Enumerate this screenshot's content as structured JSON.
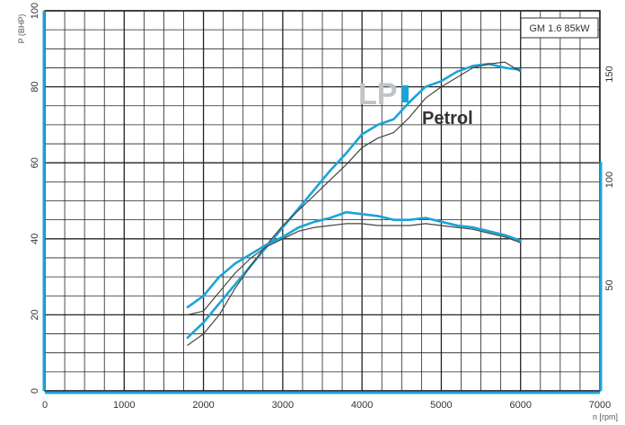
{
  "chart_data": {
    "type": "line",
    "title": "",
    "model_label": "GM 1.6 85kW",
    "xlabel": "n [rpm]",
    "ylabel": "P (BHP)",
    "xlim": [
      0,
      7000
    ],
    "ylim": [
      0,
      100
    ],
    "y2lim": [
      0,
      180
    ],
    "x_ticks": [
      0,
      1000,
      2000,
      3000,
      4000,
      5000,
      6000,
      7000
    ],
    "y_ticks": [
      0,
      20,
      40,
      60,
      80,
      100
    ],
    "y2_ticks": [
      50,
      100,
      150
    ],
    "grid": true,
    "legend": [
      {
        "text": "LP",
        "color": "#bfc4c9"
      },
      {
        "text": "Petrol",
        "color": "#333333"
      }
    ],
    "colors": {
      "lpi": "#1ba3d7",
      "petrol": "#444444",
      "axis_accent": "#1ba3d7"
    },
    "series": [
      {
        "name": "LP",
        "color": "#1ba3d7",
        "x": [
          1800,
          2000,
          2200,
          2400,
          2600,
          2800,
          3000,
          3200,
          3400,
          3600,
          3800,
          4000,
          4200,
          4400,
          4600,
          4800,
          5000,
          5200,
          5400,
          5600,
          5800,
          6000
        ],
        "values": [
          14,
          18,
          23,
          28,
          33,
          38,
          43,
          48,
          53,
          58,
          62.5,
          67.5,
          70,
          71.5,
          76,
          80,
          81.5,
          84,
          85.5,
          86,
          85,
          84.5
        ]
      },
      {
        "name": "Petrol",
        "color": "#444444",
        "x": [
          1800,
          2000,
          2200,
          2400,
          2600,
          2800,
          3000,
          3200,
          3400,
          3600,
          3800,
          4000,
          4200,
          4400,
          4600,
          4800,
          5000,
          5200,
          5400,
          5600,
          5800,
          6000
        ],
        "values": [
          12,
          15,
          20,
          27,
          33,
          38.5,
          43.5,
          47.5,
          51.5,
          55.5,
          59.5,
          64,
          66.5,
          68,
          72,
          77,
          80,
          82.5,
          85,
          86,
          86.5,
          84
        ]
      },
      {
        "x": [
          1800,
          2000,
          2200,
          2400,
          2600,
          2800,
          3000,
          3200,
          3400,
          3600,
          3800,
          4000,
          4200,
          4400,
          4600,
          4800,
          5000,
          5200,
          5400,
          5600,
          5800,
          6000
        ],
        "color": "#1ba3d7",
        "values": [
          22,
          25,
          30,
          33.5,
          36,
          38.5,
          40.5,
          43,
          44.5,
          45.5,
          47,
          46.5,
          46,
          45,
          45,
          45.5,
          44.5,
          43.5,
          43,
          42,
          41,
          39.5
        ]
      },
      {
        "x": [
          1800,
          2000,
          2200,
          2400,
          2600,
          2800,
          3000,
          3200,
          3400,
          3600,
          3800,
          4000,
          4200,
          4400,
          4600,
          4800,
          5000,
          5200,
          5400,
          5600,
          5800,
          6000
        ],
        "color": "#444444",
        "values": [
          20,
          21,
          26,
          31,
          35,
          38,
          40,
          42,
          43,
          43.5,
          44,
          44,
          43.5,
          43.5,
          43.5,
          44,
          43.5,
          43,
          42.5,
          41.5,
          40.5,
          39
        ]
      }
    ]
  }
}
